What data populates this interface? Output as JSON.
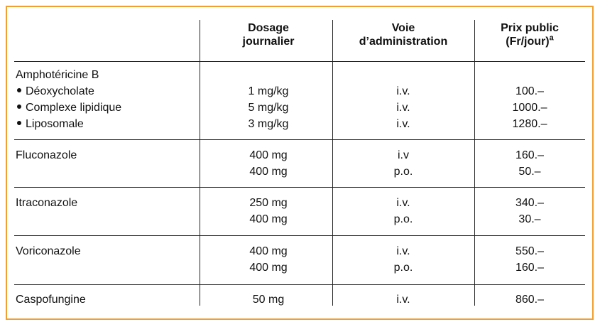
{
  "table": {
    "headers": {
      "dosage": [
        "Dosage",
        "journalier"
      ],
      "voie": [
        "Voie",
        "d’administration"
      ],
      "prix": [
        "Prix public",
        "(Fr/jour)"
      ],
      "prix_sup": "a"
    },
    "groups": [
      {
        "name": "Amphotéricine B",
        "items": [
          {
            "label": "Déoxycholate",
            "dosage": "1 mg/kg",
            "voie": "i.v.",
            "prix": "100.–"
          },
          {
            "label": "Complexe lipidique",
            "dosage": "5 mg/kg",
            "voie": "i.v.",
            "prix": "1000.–"
          },
          {
            "label": "Liposomale",
            "dosage": "3 mg/kg",
            "voie": "i.v.",
            "prix": "1280.–"
          }
        ]
      },
      {
        "name": "Fluconazole",
        "items": [
          {
            "dosage": "400 mg",
            "voie": "i.v",
            "prix": "160.–"
          },
          {
            "dosage": "400 mg",
            "voie": "p.o.",
            "prix": "50.–"
          }
        ]
      },
      {
        "name": "Itraconazole",
        "items": [
          {
            "dosage": "250 mg",
            "voie": "i.v.",
            "prix": "340.–"
          },
          {
            "dosage": "400 mg",
            "voie": "p.o.",
            "prix": "30.–"
          }
        ]
      },
      {
        "name": "Voriconazole",
        "items": [
          {
            "dosage": "400 mg",
            "voie": "i.v.",
            "prix": "550.–"
          },
          {
            "dosage": "400 mg",
            "voie": "p.o.",
            "prix": "160.–"
          }
        ]
      },
      {
        "name": "Caspofungine",
        "items": [
          {
            "dosage": "50 mg",
            "voie": "i.v.",
            "prix": "860.–"
          }
        ]
      }
    ]
  }
}
